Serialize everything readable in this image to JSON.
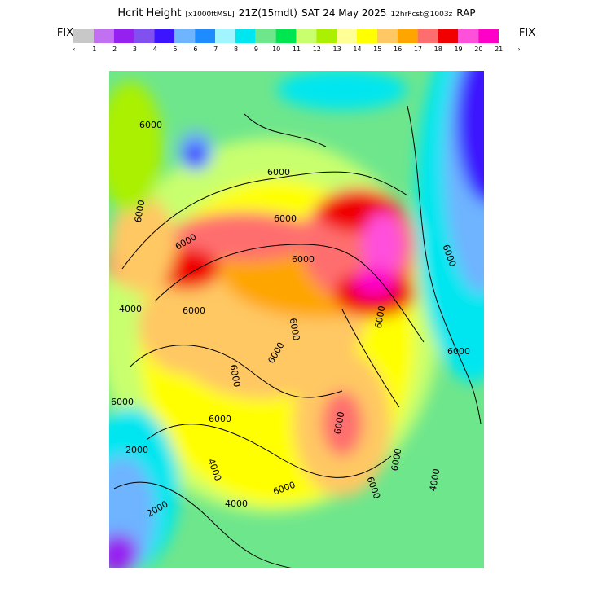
{
  "header": {
    "title_parts": [
      "Hcrit Height",
      "[x1000ftMSL]",
      "21Z(15mdt)",
      "SAT 24 May 2025",
      "12hrFcst@1003z",
      "RAP"
    ]
  },
  "legend": {
    "left_label": "FIX",
    "right_label": "FIX",
    "colors": [
      "#c8c8c8",
      "#c070f0",
      "#9620f0",
      "#8050f0",
      "#3c14ff",
      "#6eb4ff",
      "#1e8cff",
      "#a0f5ff",
      "#00e6f0",
      "#6ee68c",
      "#00e650",
      "#c8ff6e",
      "#aaf000",
      "#ffff96",
      "#ffff00",
      "#ffc864",
      "#ffa500",
      "#ff6e6e",
      "#f00000",
      "#ff50dc",
      "#ff00c8"
    ],
    "ticks": [
      "‹",
      "1",
      "2",
      "3",
      "4",
      "5",
      "6",
      "7",
      "8",
      "9",
      "10",
      "11",
      "12",
      "13",
      "14",
      "15",
      "16",
      "17",
      "18",
      "19",
      "20",
      "21",
      "›"
    ]
  },
  "map": {
    "contour_labels": [
      "6000",
      "6000",
      "6000",
      "6000",
      "6000",
      "6000",
      "6000",
      "4000",
      "6000",
      "6000",
      "6000",
      "6000",
      "6000",
      "6000",
      "6000",
      "6000",
      "6000",
      "2000",
      "4000",
      "6000",
      "4000",
      "6000",
      "6000",
      "2000",
      "4000"
    ]
  }
}
